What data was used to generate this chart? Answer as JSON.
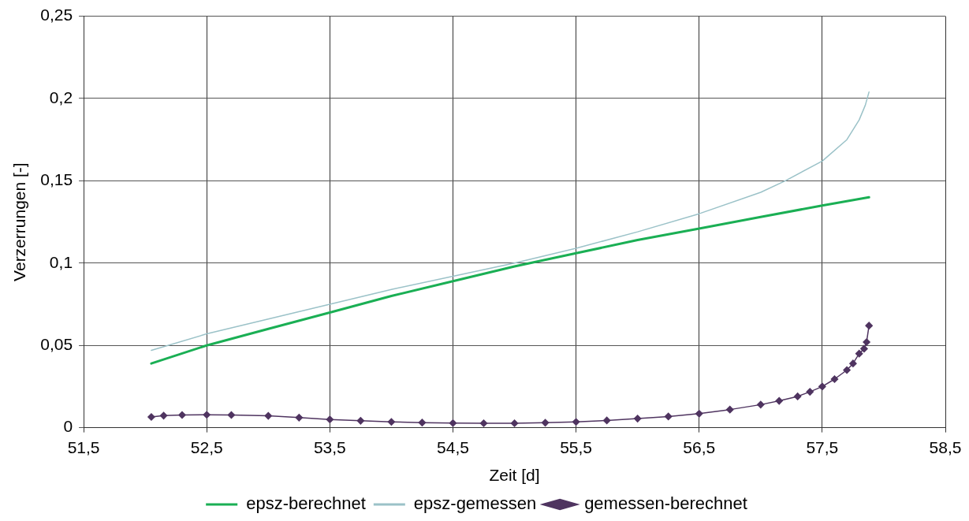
{
  "chart_data": {
    "type": "line",
    "xlabel": "Zeit [d]",
    "ylabel": "Verzerrungen [-]",
    "xlim": [
      51.5,
      58.5
    ],
    "xticks": [
      {
        "value": 51.5,
        "label": "51,5"
      },
      {
        "value": 52.5,
        "label": "52,5"
      },
      {
        "value": 53.5,
        "label": "53,5"
      },
      {
        "value": 54.5,
        "label": "54,5"
      },
      {
        "value": 55.5,
        "label": "55,5"
      },
      {
        "value": 56.5,
        "label": "56,5"
      },
      {
        "value": 57.5,
        "label": "57,5"
      },
      {
        "value": 58.5,
        "label": "58,5"
      }
    ],
    "ylim": [
      0,
      0.25
    ],
    "yticks": [
      0,
      {
        "value": 0.05,
        "label": "0,05"
      },
      {
        "value": 0.1,
        "label": "0,1"
      },
      {
        "value": 0.15,
        "label": "0,15"
      },
      {
        "value": 0.2,
        "label": "0,2"
      },
      {
        "value": 0.25,
        "label": "0,25"
      }
    ],
    "grid": true,
    "legend": "bottom",
    "line_style": "solid",
    "series": [
      {
        "name": "epsz-berechnet",
        "color": "#1aaf54",
        "marker": "none",
        "x": [
          52.05,
          52.5,
          53,
          53.5,
          54,
          54.5,
          55,
          55.5,
          56,
          56.5,
          57,
          57.5,
          57.88
        ],
        "values": [
          0.039,
          0.05,
          0.06,
          0.07,
          0.08,
          0.089,
          0.098,
          0.106,
          0.114,
          0.121,
          0.128,
          0.135,
          0.14
        ]
      },
      {
        "name": "epsz-gemessen",
        "color": "#9bc2c8",
        "marker": "none",
        "x": [
          52.05,
          52.5,
          53,
          53.5,
          54,
          54.5,
          55,
          55.5,
          56,
          56.5,
          57,
          57.2,
          57.5,
          57.7,
          57.8,
          57.85,
          57.88
        ],
        "values": [
          0.047,
          0.057,
          0.066,
          0.075,
          0.084,
          0.092,
          0.1,
          0.109,
          0.119,
          0.13,
          0.143,
          0.15,
          0.162,
          0.175,
          0.187,
          0.196,
          0.204
        ]
      },
      {
        "name": "gemessen-berechnet",
        "color": "#4f3460",
        "marker": "diamond",
        "x": [
          52.05,
          52.15,
          52.3,
          52.5,
          52.7,
          53,
          53.25,
          53.5,
          53.75,
          54,
          54.25,
          54.5,
          54.75,
          55,
          55.25,
          55.5,
          55.75,
          56,
          56.25,
          56.5,
          56.75,
          57,
          57.15,
          57.3,
          57.4,
          57.5,
          57.6,
          57.7,
          57.75,
          57.8,
          57.84,
          57.86,
          57.88
        ],
        "values": [
          0.0065,
          0.0073,
          0.0077,
          0.0078,
          0.0077,
          0.0072,
          0.0061,
          0.005,
          0.0042,
          0.0035,
          0.0031,
          0.0028,
          0.0027,
          0.0027,
          0.003,
          0.0035,
          0.0044,
          0.0055,
          0.0068,
          0.0085,
          0.011,
          0.014,
          0.0163,
          0.019,
          0.0218,
          0.025,
          0.0295,
          0.035,
          0.039,
          0.045,
          0.048,
          0.052,
          0.062
        ]
      }
    ]
  }
}
